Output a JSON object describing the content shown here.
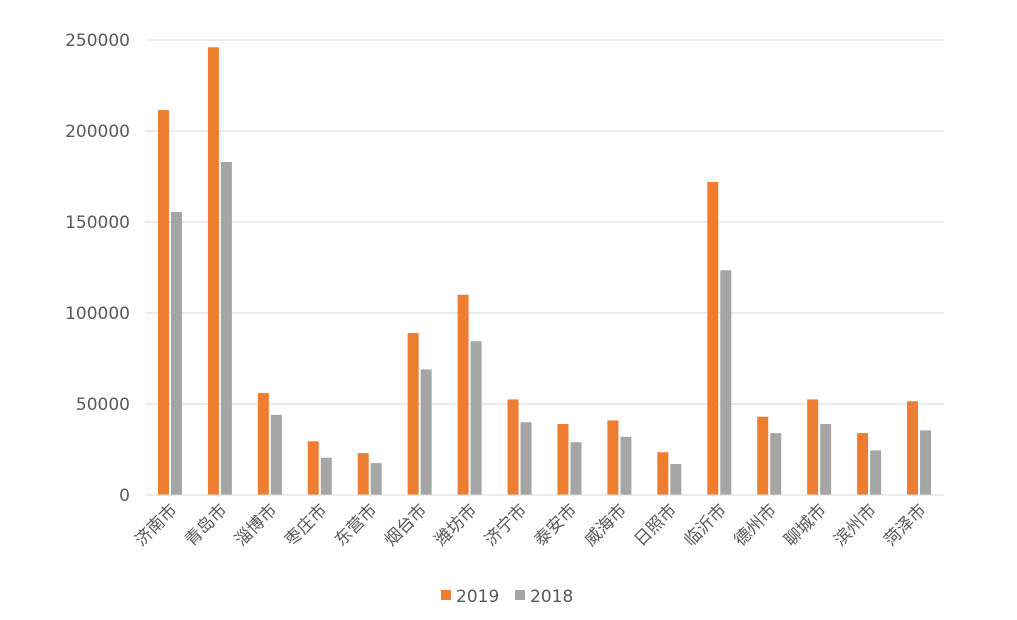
{
  "chart_data": {
    "type": "bar",
    "title": "",
    "xlabel": "",
    "ylabel": "",
    "ylim": [
      0,
      250000
    ],
    "yticks": [
      0,
      50000,
      100000,
      150000,
      200000,
      250000
    ],
    "ytick_labels": [
      "0",
      "50000",
      "100000",
      "150000",
      "200000",
      "250000"
    ],
    "grid": true,
    "legend_position": "bottom",
    "categories": [
      "济南市",
      "青岛市",
      "淄博市",
      "枣庄市",
      "东营市",
      "烟台市",
      "潍坊市",
      "济宁市",
      "泰安市",
      "威海市",
      "日照市",
      "临沂市",
      "德州市",
      "聊城市",
      "滨州市",
      "菏泽市"
    ],
    "series": [
      {
        "name": "2019",
        "color": "#ED7D31",
        "values": [
          211500,
          246000,
          56000,
          29500,
          23000,
          89000,
          110000,
          52500,
          39000,
          41000,
          23500,
          172000,
          43000,
          52500,
          34000,
          51500
        ]
      },
      {
        "name": "2018",
        "color": "#A5A5A5",
        "values": [
          155500,
          183000,
          44000,
          20500,
          17500,
          69000,
          84500,
          40000,
          29000,
          32000,
          17000,
          123500,
          34000,
          39000,
          24500,
          35500
        ]
      }
    ]
  }
}
